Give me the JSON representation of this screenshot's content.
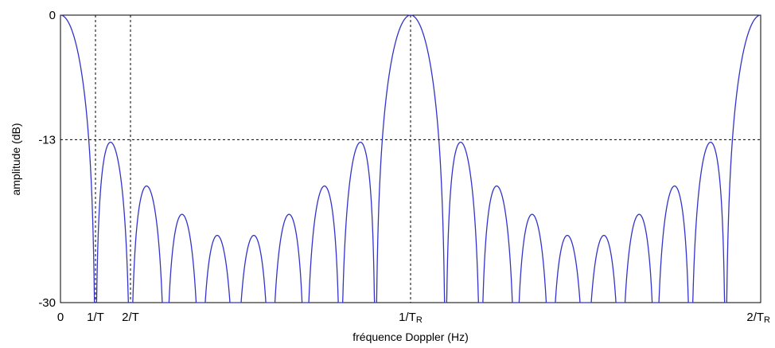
{
  "chart_data": {
    "type": "line",
    "xlabel": "fréquence Doppler (Hz)",
    "ylabel": "amplitude (dB)",
    "ylim": [
      -30,
      0
    ],
    "yticks": [
      {
        "value": 0,
        "label": "0"
      },
      {
        "value": -13,
        "label": "-13"
      },
      {
        "value": -30,
        "label": "-30"
      }
    ],
    "xlim": [
      0,
      2
    ],
    "xticks": [
      {
        "value": 0,
        "label": "0",
        "sub": ""
      },
      {
        "value": 0.1,
        "label": "1/T",
        "sub": ""
      },
      {
        "value": 0.2,
        "label": "2/T",
        "sub": ""
      },
      {
        "value": 1,
        "label": "1/T",
        "sub": "R"
      },
      {
        "value": 2,
        "label": "2/T",
        "sub": "R"
      }
    ],
    "reference_lines": {
      "horizontal": [
        -13
      ],
      "vertical": [
        0.1,
        0.2,
        1
      ]
    },
    "series": [
      {
        "color": "#3333cc",
        "function": "periodic sinc squared, 10 pulses per PRF period, in dB, clipped at -30",
        "pulses_per_period": 10,
        "period": 1
      }
    ],
    "grid": false
  }
}
